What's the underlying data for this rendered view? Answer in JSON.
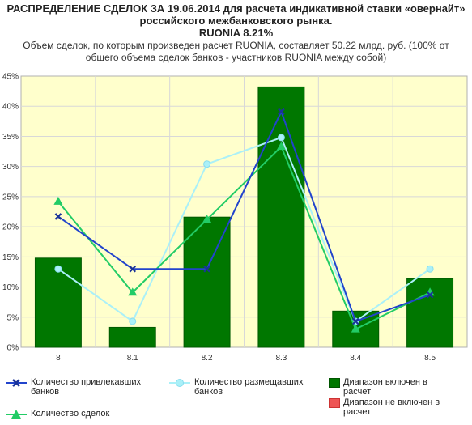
{
  "title_lines": [
    "РАСПРЕДЕЛЕНИЕ СДЕЛОК ЗА 19.06.2014 для расчета индикативной ставки «овернайт»",
    "российского межбанковского рынка.",
    "RUONIA 8.21%"
  ],
  "subtitle_lines": [
    "Объем сделок, по которым произведен расчет RUONIA, составляет 50.22 млрд. руб. (100% от",
    "общего объема сделок банков - участников RUONIA между собой)"
  ],
  "colors": {
    "plot_bg": "#ffffcc",
    "bar_included": "#007700",
    "bar_excluded": "#ee5555",
    "borrowers": "#2244cc",
    "placers": "#aaf0f8",
    "deals": "#22cc66"
  },
  "chart_data": {
    "type": "bar",
    "categories": [
      "8",
      "8.1",
      "8.2",
      "8.3",
      "8.4",
      "8.5"
    ],
    "ylim": [
      0,
      45
    ],
    "yticks": [
      0,
      5,
      10,
      15,
      20,
      25,
      30,
      35,
      40,
      45
    ],
    "ytick_labels": [
      "0%",
      "5%",
      "10%",
      "15%",
      "20%",
      "25%",
      "30%",
      "35%",
      "40%",
      "45%"
    ],
    "grid": true,
    "legend_position": "bottom",
    "series": [
      {
        "name": "Диапазон включен в расчет",
        "kind": "bar",
        "values": [
          14.8,
          3.3,
          21.6,
          43.2,
          6.0,
          11.4
        ]
      },
      {
        "name": "Количество привлекавших банков",
        "kind": "line",
        "marker": "x",
        "values": [
          21.7,
          13.0,
          13.0,
          39.1,
          4.3,
          8.7
        ]
      },
      {
        "name": "Количество размещавших банков",
        "kind": "line",
        "marker": "circle",
        "values": [
          13.0,
          4.3,
          30.4,
          34.8,
          4.3,
          13.0
        ]
      },
      {
        "name": "Количество сделок",
        "kind": "line",
        "marker": "triangle",
        "values": [
          24.2,
          9.1,
          21.2,
          33.3,
          3.0,
          9.1
        ]
      }
    ]
  },
  "legend": [
    {
      "label": "Количество привлекавших банков",
      "marker": "x",
      "color": "#2244cc"
    },
    {
      "label": "Количество размещавших банков",
      "marker": "circle",
      "color": "#aaf0f8"
    },
    {
      "label": "Диапазон включен в расчет",
      "marker": "square",
      "color": "#007700"
    },
    {
      "label": "Количество сделок",
      "marker": "triangle",
      "color": "#22cc66"
    },
    {
      "label": "Диапазон не включен в расчет",
      "marker": "square",
      "color": "#ee5555"
    }
  ]
}
